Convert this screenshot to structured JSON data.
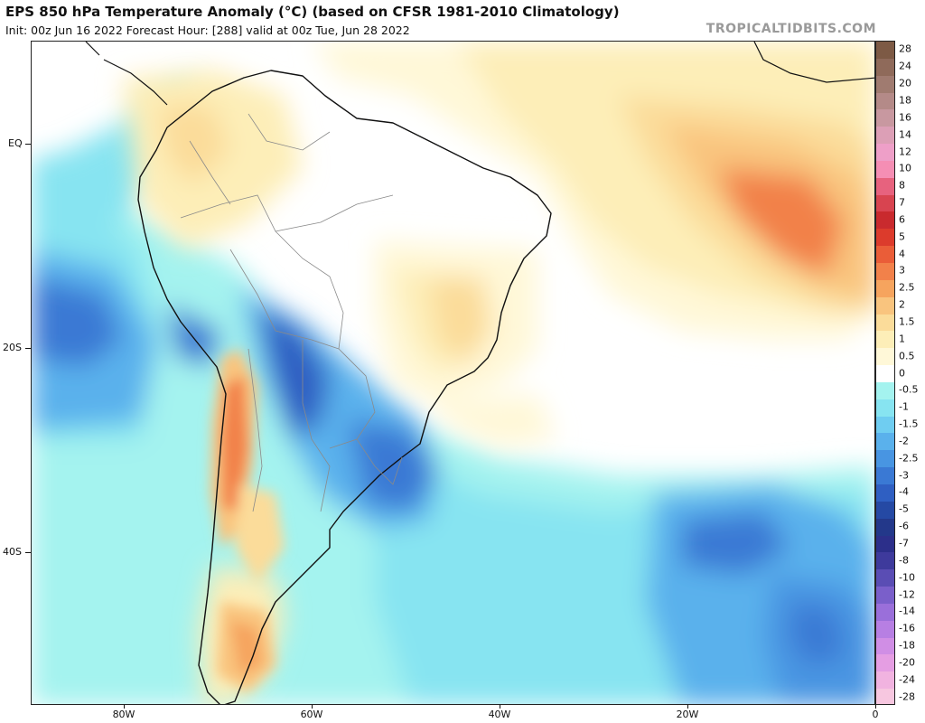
{
  "header": {
    "title": "EPS 850 hPa Temperature Anomaly (°C) (based on CFSR 1981-2010 Climatology)",
    "subtitle": "Init: 00z Jun 16 2022   Forecast Hour: [288]   valid at 00z Tue, Jun 28 2022",
    "credit": "TROPICALTIDBITS.COM"
  },
  "map": {
    "variable": "850 hPa temperature anomaly",
    "units": "°C",
    "region": "South America and South Atlantic",
    "lat_labels": [
      "EQ",
      "20S",
      "40S"
    ],
    "lon_labels": [
      "80W",
      "60W",
      "40W",
      "20W",
      "0"
    ],
    "colors": {
      "land_lines": "#111111",
      "border_lines": "#8a8a8a"
    }
  },
  "colorbar": {
    "levels": [
      "28",
      "24",
      "20",
      "18",
      "16",
      "14",
      "12",
      "10",
      "8",
      "7",
      "6",
      "5",
      "4",
      "3",
      "2.5",
      "2",
      "1.5",
      "1",
      "0.5",
      "0",
      "-0.5",
      "-1",
      "-1.5",
      "-2",
      "-2.5",
      "-3",
      "-4",
      "-5",
      "-6",
      "-7",
      "-8",
      "-10",
      "-12",
      "-14",
      "-16",
      "-18",
      "-20",
      "-24",
      "-28"
    ],
    "colors": [
      "#7d5a45",
      "#8f6a5a",
      "#a07b70",
      "#b48a88",
      "#c898a0",
      "#dc9fb6",
      "#ee9fc8",
      "#f58eb4",
      "#e7627e",
      "#d84450",
      "#c92a2e",
      "#dc3b2c",
      "#ea5d38",
      "#f2814a",
      "#f6a45e",
      "#f9c47e",
      "#fbdc9a",
      "#fdeeb8",
      "#fff8d8",
      "#ffffff",
      "#a4f3ef",
      "#87e4f1",
      "#6fcdf1",
      "#5ab1ec",
      "#4895e2",
      "#3a79d4",
      "#2f5fc2",
      "#2549a4",
      "#23388a",
      "#2c2f8a",
      "#3e3a9c",
      "#5a4db4",
      "#7a5fca",
      "#9a6fda",
      "#b77fe3",
      "#d08ee5",
      "#e59ee3",
      "#f1b3e0",
      "#f7c7e0"
    ]
  }
}
